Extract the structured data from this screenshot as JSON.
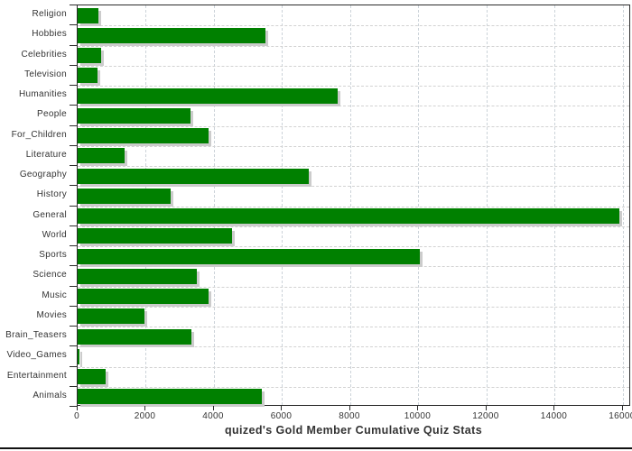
{
  "chart_data": {
    "type": "bar",
    "orientation": "horizontal",
    "title": "quized's Gold Member Cumulative Quiz Stats",
    "categories": [
      "Religion",
      "Hobbies",
      "Celebrities",
      "Television",
      "Humanities",
      "People",
      "For_Children",
      "Literature",
      "Geography",
      "History",
      "General",
      "World",
      "Sports",
      "Science",
      "Music",
      "Movies",
      "Brain_Teasers",
      "Video_Games",
      "Entertainment",
      "Animals"
    ],
    "values": [
      620,
      5500,
      680,
      570,
      7640,
      3320,
      3850,
      1390,
      6790,
      2720,
      15900,
      4540,
      10050,
      3500,
      3850,
      1950,
      3350,
      50,
      830,
      5400
    ],
    "xlabel": "",
    "ylabel": "",
    "x_ticks": [
      0,
      2000,
      4000,
      6000,
      8000,
      10000,
      12000,
      14000,
      16000
    ],
    "xlim": [
      0,
      16240
    ],
    "grid": true,
    "legend": "none",
    "bar_color": "#008000",
    "bar_shadow_color": "#cccccc",
    "gridline_color_vertical": "#ccd3d9",
    "gridline_color_horizontal": "#d2d2d2",
    "axis_color": "#2b2b2b",
    "label_color": "#333333",
    "background_color": "#ffffff"
  }
}
